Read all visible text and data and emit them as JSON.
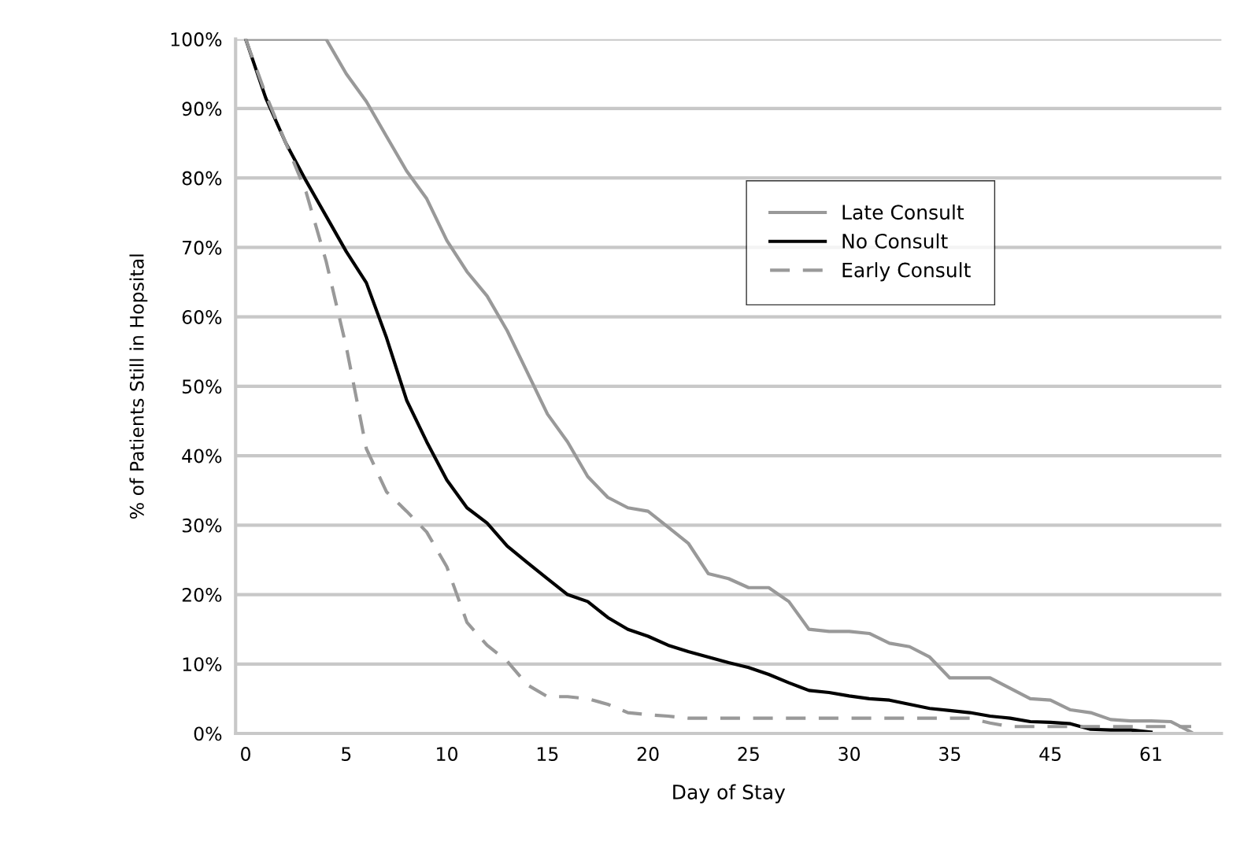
{
  "chart_data": {
    "type": "line",
    "xlabel": "Day of Stay",
    "ylabel": "% of Patients Still in Hopsital",
    "categories": [
      "0",
      null,
      null,
      null,
      null,
      "5",
      null,
      null,
      null,
      null,
      "10",
      null,
      null,
      null,
      null,
      "15",
      null,
      null,
      null,
      null,
      "20",
      null,
      null,
      null,
      null,
      "25",
      null,
      null,
      null,
      null,
      "30",
      null,
      null,
      null,
      null,
      "35",
      null,
      null,
      null,
      null,
      "45",
      null,
      null,
      null,
      null,
      "61",
      null,
      null,
      null
    ],
    "ylim": [
      0,
      100
    ],
    "yticks": [
      {
        "value": 0,
        "label": "0%"
      },
      {
        "value": 10,
        "label": "10%"
      },
      {
        "value": 20,
        "label": "20%"
      },
      {
        "value": 30,
        "label": "30%"
      },
      {
        "value": 40,
        "label": "40%"
      },
      {
        "value": 50,
        "label": "50%"
      },
      {
        "value": 60,
        "label": "60%"
      },
      {
        "value": 70,
        "label": "70%"
      },
      {
        "value": 80,
        "label": "80%"
      },
      {
        "value": 90,
        "label": "90%"
      },
      {
        "value": 100,
        "label": "100%"
      }
    ],
    "grid": "y",
    "legend": "top right",
    "marker": "none",
    "series": [
      {
        "name": "Late Consult",
        "color": "#999999",
        "line_style": "solid",
        "values": [
          100,
          100,
          100,
          100,
          100,
          95,
          91,
          86,
          81,
          77,
          71,
          66.5,
          63,
          58,
          52,
          46,
          42,
          37,
          34,
          32.5,
          32,
          29.7,
          27.4,
          23,
          22.3,
          21,
          21,
          19,
          15,
          14.7,
          14.7,
          14.4,
          13,
          12.5,
          11,
          8,
          8,
          8,
          6.5,
          5,
          4.8,
          3.4,
          3,
          2,
          1.8,
          1.8,
          1.7,
          0.2,
          null
        ]
      },
      {
        "name": "No Consult",
        "color": "#000000",
        "line_style": "solid",
        "values": [
          100,
          91.5,
          85,
          79.6,
          74.5,
          69.4,
          64.9,
          57,
          48,
          42,
          36.5,
          32.5,
          30.3,
          27,
          24.6,
          22.3,
          20,
          19,
          16.7,
          15,
          14,
          12.7,
          11.8,
          11,
          10.2,
          9.5,
          8.5,
          7.3,
          6.2,
          5.9,
          5.4,
          5,
          4.8,
          4.2,
          3.6,
          3.3,
          3,
          2.5,
          2.2,
          1.7,
          1.6,
          1.4,
          0.6,
          0.5,
          0.5,
          0.2,
          null,
          null,
          null
        ]
      },
      {
        "name": "Early Consult",
        "color": "#999999",
        "line_style": "dashed",
        "values": [
          100,
          92,
          85,
          78,
          68,
          55.7,
          41,
          34.8,
          32,
          29,
          24,
          16,
          12.7,
          10.4,
          7,
          5.3,
          5.3,
          5,
          4.2,
          3,
          2.7,
          2.5,
          2.2,
          2.2,
          2.2,
          2.2,
          2.2,
          2.2,
          2.2,
          2.2,
          2.2,
          2.2,
          2.2,
          2.2,
          2.2,
          2.2,
          2.2,
          1.5,
          1,
          1,
          1,
          1,
          1,
          1,
          1,
          1,
          1,
          1,
          null
        ]
      }
    ]
  }
}
